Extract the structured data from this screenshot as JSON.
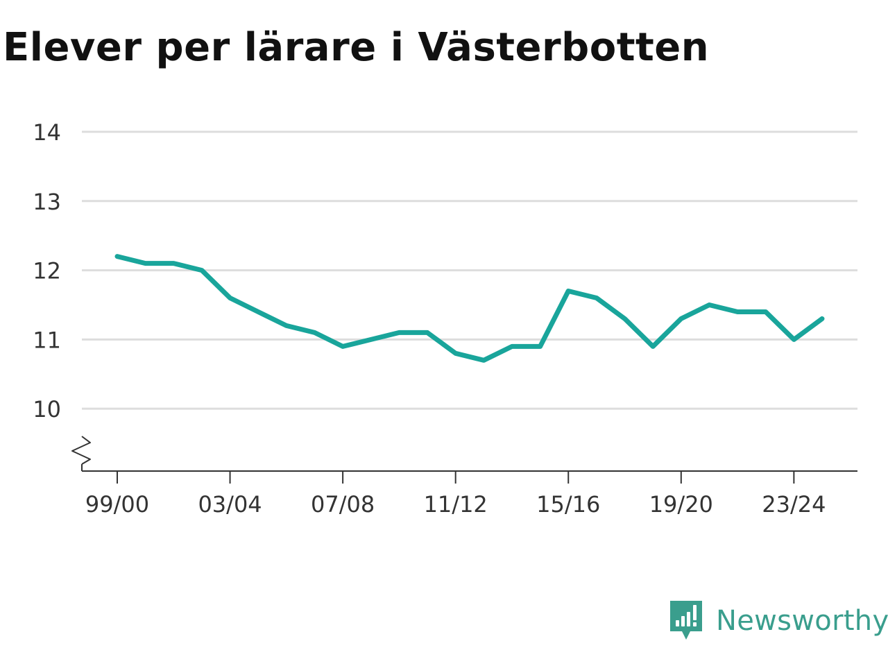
{
  "title": "Elever per lärare i Västerbotten",
  "brand": {
    "name": "Newsworthy",
    "icon": "newsworthy-logo-icon",
    "color": "#3a9e8d"
  },
  "colors": {
    "line": "#19a59b",
    "grid": "#dddddd",
    "axis": "#333333",
    "text": "#333333",
    "title": "#111111"
  },
  "chart_data": {
    "type": "line",
    "title": "Elever per lärare i Västerbotten",
    "xlabel": "",
    "ylabel": "",
    "ylim": [
      9.1,
      14
    ],
    "y_ticks": [
      10,
      11,
      12,
      13,
      14
    ],
    "y_axis_break": true,
    "grid": true,
    "x_ticks": [
      "99/00",
      "03/04",
      "07/08",
      "11/12",
      "15/16",
      "19/20",
      "23/24"
    ],
    "categories": [
      "99/00",
      "00/01",
      "01/02",
      "02/03",
      "03/04",
      "04/05",
      "05/06",
      "06/07",
      "07/08",
      "08/09",
      "09/10",
      "10/11",
      "11/12",
      "12/13",
      "13/14",
      "14/15",
      "15/16",
      "16/17",
      "17/18",
      "18/19",
      "19/20",
      "20/21",
      "21/22",
      "22/23",
      "23/24",
      "24/25"
    ],
    "series": [
      {
        "values": [
          12.2,
          12.1,
          12.1,
          12.0,
          11.6,
          11.4,
          11.2,
          11.1,
          10.9,
          11.0,
          11.1,
          11.1,
          10.8,
          10.7,
          10.9,
          10.9,
          11.7,
          11.6,
          11.3,
          10.9,
          11.3,
          11.5,
          11.4,
          11.4,
          11.0,
          11.3
        ]
      }
    ]
  }
}
